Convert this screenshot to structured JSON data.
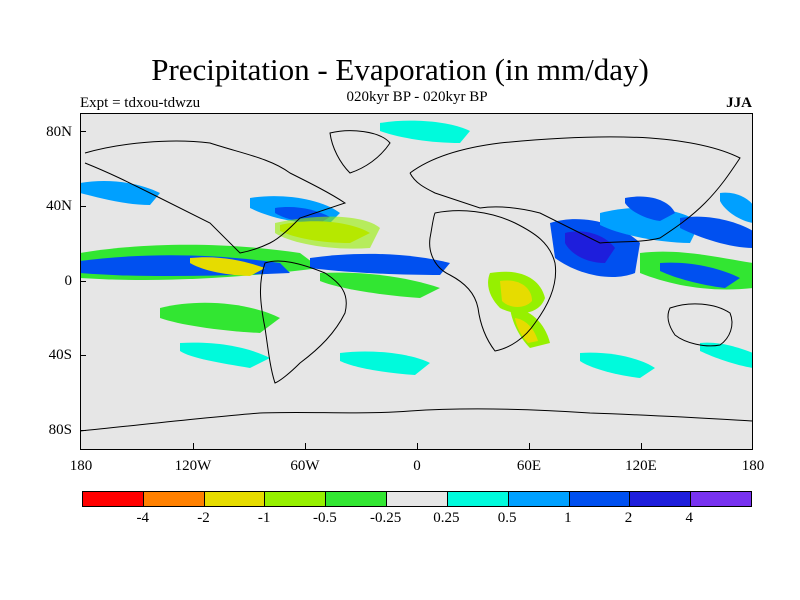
{
  "title": "Precipitation - Evaporation (in mm/day)",
  "subtitle": "020kyr BP - 020kyr BP",
  "expt": "Expt = tdxou-tdwzu",
  "season": "JJA",
  "map": {
    "background": "#e6e6e6",
    "lat_labels": [
      "80N",
      "40N",
      "0",
      "40S",
      "80S"
    ],
    "lon_labels": [
      "180",
      "120W",
      "60W",
      "0",
      "60E",
      "120E",
      "180"
    ]
  },
  "colorbar": {
    "colors": [
      "#ff0000",
      "#ff8000",
      "#e6dc00",
      "#96f000",
      "#32e632",
      "#e6e6e6",
      "#00fadc",
      "#00a0ff",
      "#0050f0",
      "#1e1edc",
      "#7832f0"
    ],
    "labels": [
      "-4",
      "-2",
      "-1",
      "-0.5",
      "-0.25",
      "0.25",
      "0.5",
      "1",
      "2",
      "4"
    ]
  }
}
